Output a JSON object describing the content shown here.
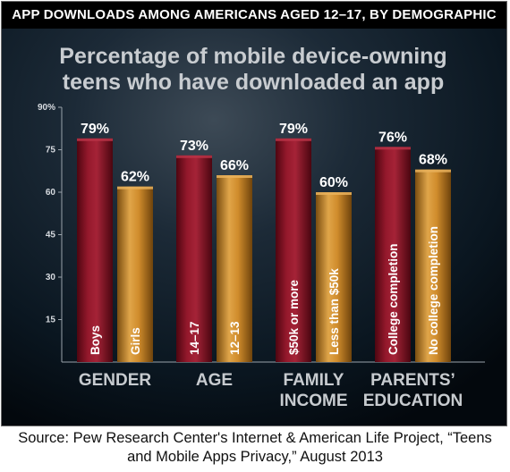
{
  "banner": "APP DOWNLOADS AMONG AMERICANS AGED 12–17, BY DEMOGRAPHIC",
  "source": {
    "line1": "Source: Pew Research Center's Internet & American Life Project, “Teens",
    "line2": "and Mobile Apps Privacy,” August 2013"
  },
  "colors": {
    "background": "#0b1a27",
    "red_bar": "#7a1020",
    "gold_bar": "#c9882a",
    "title_text": "#c8ccd0",
    "group_label": "#c7cbcf"
  },
  "chart_data": {
    "type": "bar",
    "title_line1": "Percentage of mobile device-owning",
    "title_line2": "teens who have downloaded an app",
    "ylim": [
      0,
      90
    ],
    "yticks": [
      "90%",
      "75",
      "60",
      "45",
      "30",
      "15"
    ],
    "ytick_values": [
      90,
      75,
      60,
      45,
      30,
      15
    ],
    "grid": false,
    "groups": [
      {
        "label_lines": [
          "GENDER"
        ],
        "bars": [
          {
            "label": "Boys",
            "value": 79,
            "value_label": "79%",
            "color": "red"
          },
          {
            "label": "Girls",
            "value": 62,
            "value_label": "62%",
            "color": "gold"
          }
        ]
      },
      {
        "label_lines": [
          "AGE"
        ],
        "bars": [
          {
            "label": "14–17",
            "value": 73,
            "value_label": "73%",
            "color": "red"
          },
          {
            "label": "12–13",
            "value": 66,
            "value_label": "66%",
            "color": "gold"
          }
        ]
      },
      {
        "label_lines": [
          "FAMILY",
          "INCOME"
        ],
        "bars": [
          {
            "label": "$50k or more",
            "value": 79,
            "value_label": "79%",
            "color": "red"
          },
          {
            "label": "Less than $50k",
            "value": 60,
            "value_label": "60%",
            "color": "gold"
          }
        ]
      },
      {
        "label_lines": [
          "PARENTS’",
          "EDUCATION"
        ],
        "bars": [
          {
            "label": "College completion",
            "value": 76,
            "value_label": "76%",
            "color": "red"
          },
          {
            "label": "No college completion",
            "value": 68,
            "value_label": "68%",
            "color": "gold"
          }
        ]
      }
    ]
  }
}
